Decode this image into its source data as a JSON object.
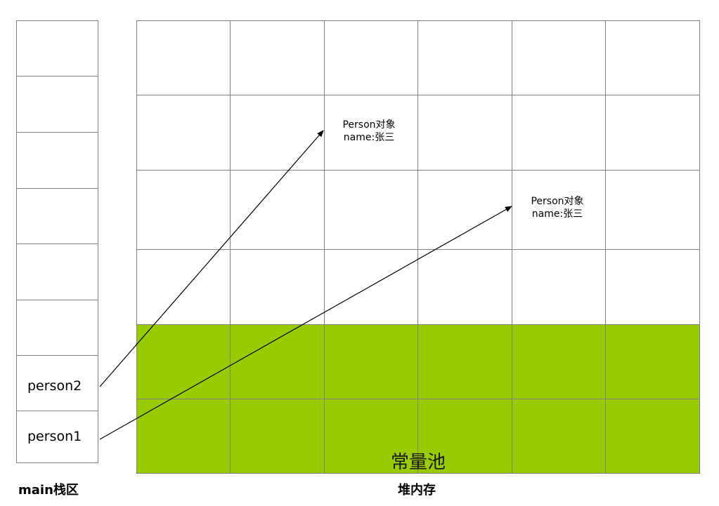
{
  "stack": {
    "title": "main栈区",
    "cells": [
      "",
      "",
      "",
      "",
      "",
      "",
      "person2",
      "person1"
    ]
  },
  "heap": {
    "title": "堆内存",
    "constant_pool_label": "常量池",
    "columns": 6,
    "rows": 6,
    "constant_pool_color": "#99cc00",
    "objects": [
      {
        "line1": "Person对象",
        "line2": "name:张三"
      },
      {
        "line1": "Person对象",
        "line2": "name:张三"
      }
    ]
  },
  "references": [
    {
      "from": "person2",
      "to": "heap-object-1"
    },
    {
      "from": "person1",
      "to": "heap-object-2"
    }
  ]
}
